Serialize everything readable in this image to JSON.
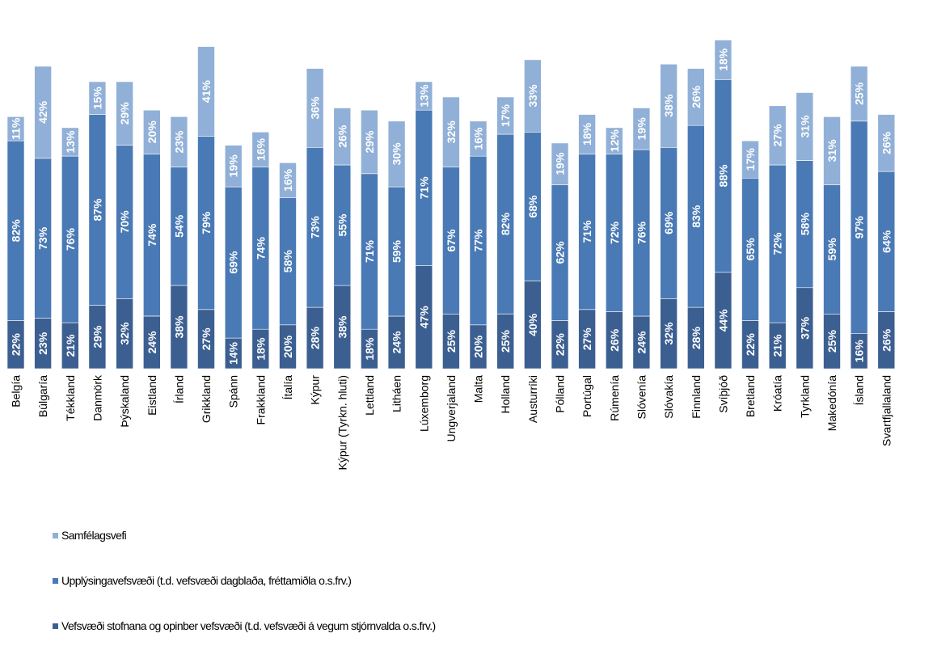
{
  "chart_data": {
    "type": "bar",
    "stacked": true,
    "categories": [
      "Belgía",
      "Búlgaría",
      "Tékkland",
      "Danmörk",
      "Þýskaland",
      "Eistland",
      "Írland",
      "Grikkland",
      "Spánn",
      "Frakkland",
      "Ítalía",
      "Kýpur",
      "Kýpur (Tyrkn. hluti)",
      "Lettland",
      "Litháen",
      "Lúxemborg",
      "Ungverjaland",
      "Malta",
      "Holland",
      "Austurríki",
      "Pólland",
      "Portúgal",
      "Rúmenía",
      "Slóvenía",
      "Slóvakía",
      "Finnland",
      "Svíþjóð",
      "Bretland",
      "Króatía",
      "Tyrkland",
      "Makedónía",
      "Ísland",
      "Svartfjallaland"
    ],
    "series": [
      {
        "name": "Vefsvæði stofnana og opinber vefsvæði (t.d. vefsvæði á vegum stjórnvalda o.s.frv.)",
        "color": "#3c5f91",
        "values": [
          22,
          23,
          21,
          29,
          32,
          24,
          38,
          27,
          14,
          18,
          20,
          28,
          38,
          18,
          24,
          47,
          25,
          20,
          25,
          40,
          22,
          27,
          26,
          24,
          32,
          28,
          44,
          22,
          21,
          37,
          25,
          16,
          26
        ],
        "labels": [
          "22%",
          "23%",
          "21%",
          "29%",
          "32%",
          "24%",
          "38%",
          "27%",
          "14%",
          "18%",
          "20%",
          "28%",
          "38%",
          "18%",
          "24%",
          "47%",
          "25%",
          "20%",
          "25%",
          "40%",
          "22%",
          "27%",
          "26%",
          "24%",
          "32%",
          "28%",
          "44%",
          "22%",
          "21%",
          "37%",
          "25%",
          "16%",
          "26%"
        ]
      },
      {
        "name": "Upplýsingavefsvæði (t.d. vefsvæði dagblaða, fréttamiðla o.s.frv.)",
        "color": "#4a7ab5",
        "values": [
          82,
          73,
          76,
          87,
          70,
          74,
          54,
          79,
          69,
          74,
          58,
          73,
          55,
          71,
          59,
          71,
          67,
          77,
          82,
          68,
          62,
          71,
          72,
          76,
          69,
          83,
          88,
          65,
          72,
          58,
          59,
          97,
          64
        ],
        "labels": [
          "82%",
          "73%",
          "76%",
          "87%",
          "70%",
          "74%",
          "54%",
          "79%",
          "69%",
          "74%",
          "58%",
          "73%",
          "55%",
          "71%",
          "59%",
          "71%",
          "67%",
          "77%",
          "82%",
          "68%",
          "62%",
          "71%",
          "72%",
          "76%",
          "69%",
          "83%",
          "88%",
          "65%",
          "72%",
          "58%",
          "59%",
          "97%",
          "64%"
        ]
      },
      {
        "name": "Samfélagsvefi",
        "color": "#91b0d7",
        "values": [
          11,
          42,
          13,
          15,
          29,
          20,
          23,
          41,
          19,
          16,
          16,
          36,
          26,
          29,
          30,
          13,
          32,
          16,
          17,
          33,
          19,
          18,
          12,
          19,
          38,
          26,
          18,
          17,
          27,
          31,
          31,
          25,
          26
        ],
        "labels": [
          "11%",
          "42%",
          "13%",
          "15%",
          "29%",
          "20%",
          "23%",
          "41%",
          "19%",
          "16%",
          "16%",
          "36%",
          "26%",
          "29%",
          "30%",
          "13%",
          "32%",
          "16%",
          "17%",
          "33%",
          "19%",
          "18%",
          "12%",
          "19%",
          "38%",
          "26%",
          "18%",
          "17%",
          "27%",
          "31%",
          "31%",
          "25%",
          "26%"
        ]
      }
    ],
    "legend_placement": "bottom-left",
    "grid": false
  },
  "legend": [
    {
      "label": "Samfélagsvefi",
      "color": "#91b0d7"
    },
    {
      "label": "Upplýsingavefsvæði (t.d. vefsvæði dagblaða, fréttamiðla o.s.frv.)",
      "color": "#4a7ab5"
    },
    {
      "label": "Vefsvæði stofnana og opinber vefsvæði (t.d. vefsvæði á vegum stjórnvalda o.s.frv.)",
      "color": "#3c5f91"
    }
  ]
}
